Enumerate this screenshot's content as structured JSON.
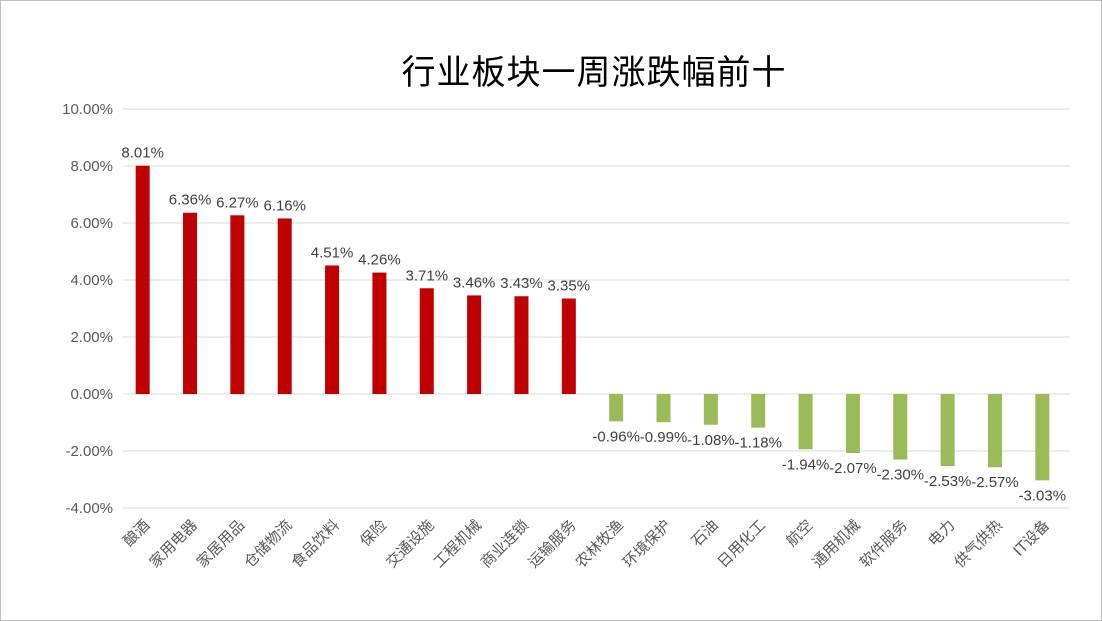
{
  "chart_data": {
    "type": "bar",
    "title": "行业板块一周涨跌幅前十",
    "categories": [
      "酿酒",
      "家用电器",
      "家居用品",
      "仓储物流",
      "食品饮料",
      "保险",
      "交通设施",
      "工程机械",
      "商业连锁",
      "运输服务",
      "农林牧渔",
      "环境保护",
      "石油",
      "日用化工",
      "航空",
      "通用机械",
      "软件服务",
      "电力",
      "供气供热",
      "IT设备"
    ],
    "values": [
      8.01,
      6.36,
      6.27,
      6.16,
      4.51,
      4.26,
      3.71,
      3.46,
      3.43,
      3.35,
      -0.96,
      -0.99,
      -1.08,
      -1.18,
      -1.94,
      -2.07,
      -2.3,
      -2.53,
      -2.57,
      -3.03
    ],
    "data_labels": [
      "8.01%",
      "6.36%",
      "6.27%",
      "6.16%",
      "4.51%",
      "4.26%",
      "3.71%",
      "3.46%",
      "3.43%",
      "3.35%",
      "-0.96%",
      "-0.99%",
      "-1.08%",
      "-1.18%",
      "-1.94%",
      "-2.07%",
      "-2.30%",
      "-2.53%",
      "-2.57%",
      "-3.03%"
    ],
    "yticks": [
      -4,
      -2,
      0,
      2,
      4,
      6,
      8,
      10
    ],
    "ytick_labels": [
      "-4.00%",
      "-2.00%",
      "0.00%",
      "2.00%",
      "4.00%",
      "6.00%",
      "8.00%",
      "10.00%"
    ],
    "ylim": [
      -4,
      10
    ],
    "grid": true,
    "legend": "none",
    "colors": {
      "positive": "#c00000",
      "negative": "#9bbb59",
      "grid": "#d9d9d9"
    }
  }
}
